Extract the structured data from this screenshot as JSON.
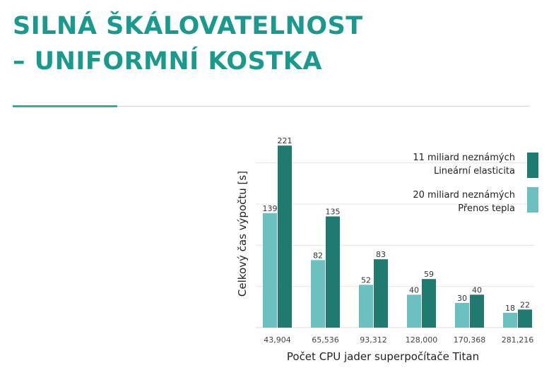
{
  "header": {
    "title_line1": "SILNÁ ŠKÁLOVATELNOST",
    "title_line2": "– UNIFORMNÍ KOSTKA"
  },
  "colors": {
    "title": "#1a9a8c",
    "series_light": "#6cc0bf",
    "series_dark": "#1f7a70",
    "gridline": "#e6e6e6"
  },
  "chart_data": {
    "type": "bar",
    "xlabel": "Počet CPU jader superpočítače Titan",
    "ylabel": "Celkový čas výpočtu [s]",
    "categories": [
      "43,904",
      "65,536",
      "93,312",
      "128,000",
      "170,368",
      "281,216"
    ],
    "ylim": [
      0,
      240
    ],
    "grid": true,
    "legend_position": "right",
    "series": [
      {
        "name_line1": "20 miliard neznámých",
        "name_line2": "Přenos tepla",
        "color": "#6cc0bf",
        "values": [
          139,
          82,
          52,
          40,
          30,
          18
        ]
      },
      {
        "name_line1": "11 miliard neznámých",
        "name_line2": "Lineární elasticita",
        "color": "#1f7a70",
        "values": [
          221,
          135,
          83,
          59,
          40,
          22
        ]
      }
    ]
  }
}
